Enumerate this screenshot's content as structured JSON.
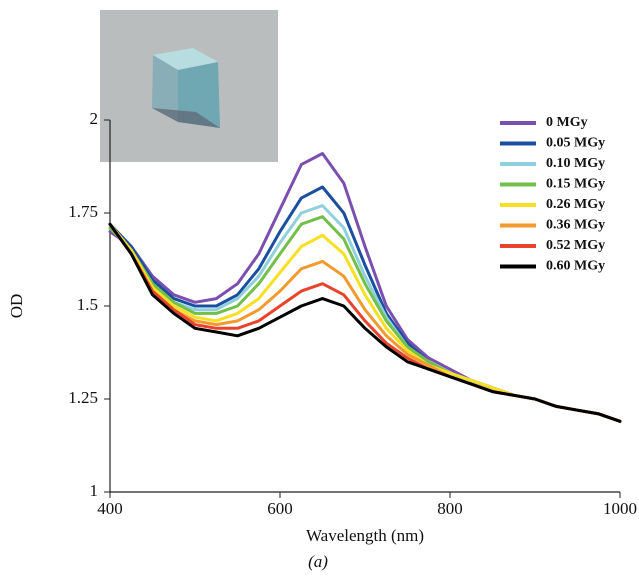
{
  "chart_data": {
    "type": "line",
    "x_label": "Wavelength (nm)",
    "y_label": "OD",
    "caption": "(a)",
    "x": [
      400,
      425,
      450,
      475,
      500,
      525,
      550,
      575,
      600,
      625,
      650,
      675,
      700,
      725,
      750,
      775,
      800,
      825,
      850,
      875,
      900,
      925,
      950,
      975,
      1000
    ],
    "xlim": [
      400,
      1000
    ],
    "xticks": [
      400,
      600,
      800,
      1000
    ],
    "ylim": [
      1,
      2
    ],
    "yticks": [
      1,
      1.25,
      1.5,
      1.75,
      2
    ],
    "legend": "upper right",
    "series": [
      {
        "name": "0 MGy",
        "color": "#7b4fb0",
        "values": [
          1.7,
          1.66,
          1.58,
          1.53,
          1.51,
          1.52,
          1.56,
          1.64,
          1.76,
          1.88,
          1.91,
          1.83,
          1.66,
          1.5,
          1.41,
          1.36,
          1.33,
          1.3,
          1.28,
          1.26,
          1.25,
          1.23,
          1.22,
          1.21,
          1.19
        ]
      },
      {
        "name": "0.05 MGy",
        "color": "#1a4fa0",
        "values": [
          1.72,
          1.66,
          1.57,
          1.52,
          1.5,
          1.5,
          1.53,
          1.6,
          1.7,
          1.79,
          1.82,
          1.75,
          1.61,
          1.48,
          1.4,
          1.35,
          1.32,
          1.3,
          1.28,
          1.26,
          1.25,
          1.23,
          1.22,
          1.21,
          1.19
        ]
      },
      {
        "name": "0.10 MGy",
        "color": "#8fd0dc",
        "values": [
          1.71,
          1.65,
          1.56,
          1.51,
          1.49,
          1.49,
          1.52,
          1.58,
          1.67,
          1.75,
          1.77,
          1.71,
          1.58,
          1.47,
          1.39,
          1.35,
          1.32,
          1.3,
          1.28,
          1.26,
          1.25,
          1.23,
          1.22,
          1.21,
          1.19
        ]
      },
      {
        "name": "0.15 MGy",
        "color": "#72bf4a",
        "values": [
          1.71,
          1.65,
          1.56,
          1.51,
          1.48,
          1.48,
          1.5,
          1.56,
          1.64,
          1.72,
          1.74,
          1.68,
          1.56,
          1.46,
          1.39,
          1.35,
          1.32,
          1.3,
          1.28,
          1.26,
          1.25,
          1.23,
          1.22,
          1.21,
          1.19
        ]
      },
      {
        "name": "0.26 MGy",
        "color": "#f7e024",
        "values": [
          1.72,
          1.65,
          1.55,
          1.5,
          1.47,
          1.46,
          1.48,
          1.52,
          1.59,
          1.66,
          1.69,
          1.64,
          1.53,
          1.44,
          1.38,
          1.34,
          1.32,
          1.3,
          1.28,
          1.26,
          1.25,
          1.23,
          1.22,
          1.21,
          1.19
        ]
      },
      {
        "name": "0.36 MGy",
        "color": "#f39a2e",
        "values": [
          1.72,
          1.64,
          1.54,
          1.49,
          1.46,
          1.45,
          1.46,
          1.49,
          1.54,
          1.6,
          1.62,
          1.58,
          1.49,
          1.42,
          1.37,
          1.34,
          1.31,
          1.29,
          1.27,
          1.26,
          1.25,
          1.23,
          1.22,
          1.21,
          1.19
        ]
      },
      {
        "name": "0.52 MGy",
        "color": "#e8432c",
        "values": [
          1.72,
          1.64,
          1.54,
          1.49,
          1.45,
          1.44,
          1.44,
          1.46,
          1.5,
          1.54,
          1.56,
          1.53,
          1.46,
          1.4,
          1.36,
          1.33,
          1.31,
          1.29,
          1.27,
          1.26,
          1.25,
          1.23,
          1.22,
          1.21,
          1.19
        ]
      },
      {
        "name": "0.60 MGy",
        "color": "#000000",
        "values": [
          1.72,
          1.64,
          1.53,
          1.48,
          1.44,
          1.43,
          1.42,
          1.44,
          1.47,
          1.5,
          1.52,
          1.5,
          1.44,
          1.39,
          1.35,
          1.33,
          1.31,
          1.29,
          1.27,
          1.26,
          1.25,
          1.23,
          1.22,
          1.21,
          1.19
        ]
      }
    ]
  }
}
